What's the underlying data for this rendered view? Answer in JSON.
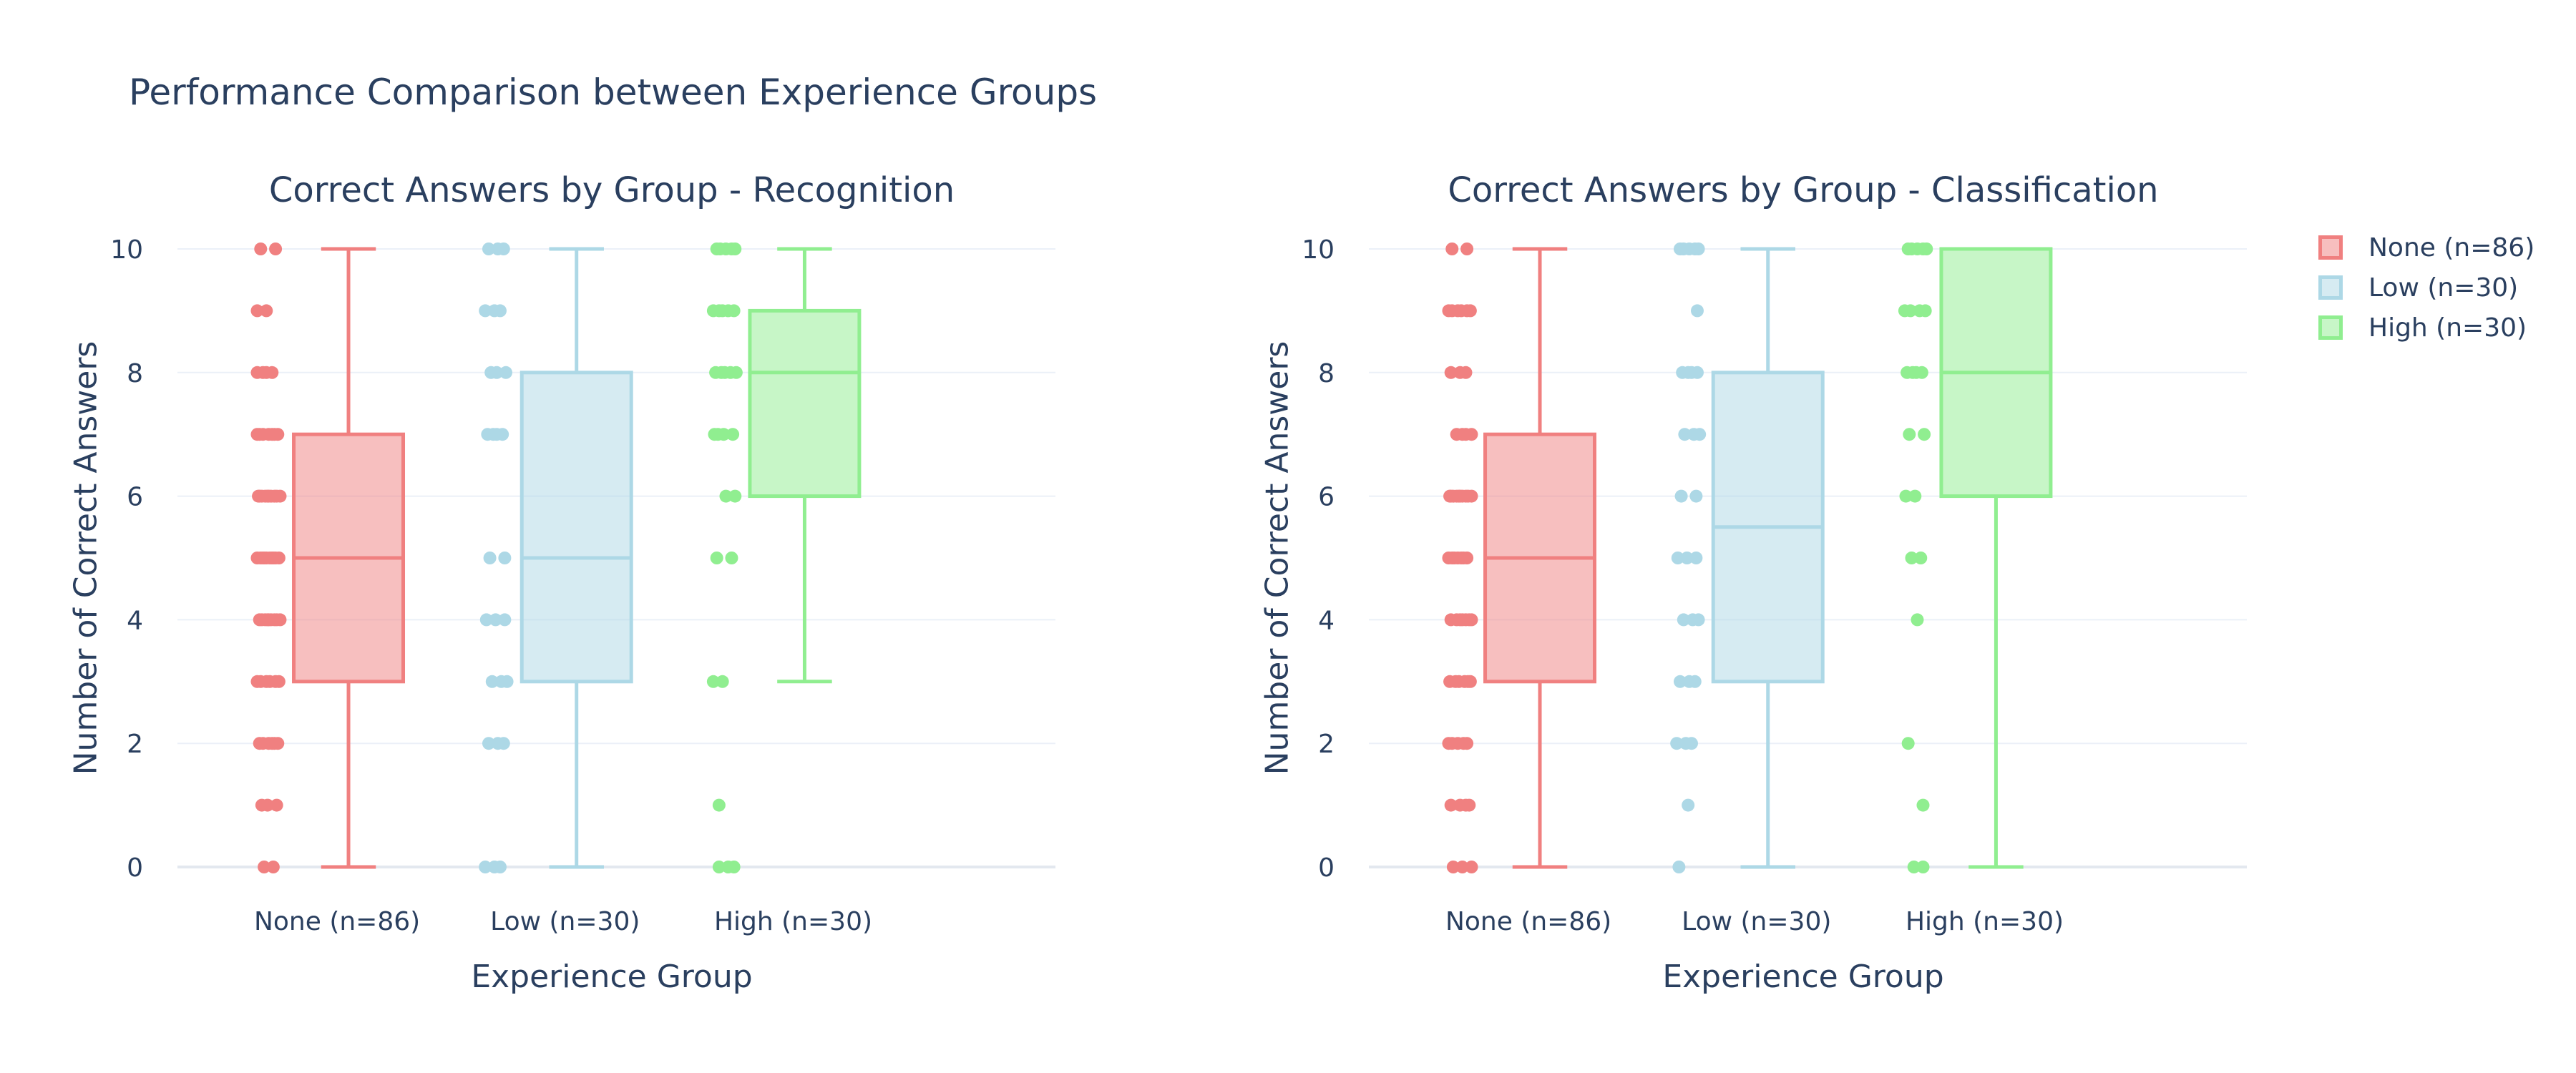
{
  "title": "Performance Comparison between Experience Groups",
  "colors": {
    "None (n=86)": "#f08080",
    "Low (n=30)": "#add8e6",
    "High (n=30)": "#90ee90"
  },
  "legend": [
    {
      "name": "None (n=86)",
      "color": "#f08080"
    },
    {
      "name": "Low (n=30)",
      "color": "#add8e6"
    },
    {
      "name": "High (n=30)",
      "color": "#90ee90"
    }
  ],
  "chart_data": [
    {
      "type": "box",
      "title": "Correct Answers by Group - Recognition",
      "xlabel": "Experience Group",
      "ylabel": "Number of Correct Answers",
      "ylim": [
        0,
        10
      ],
      "yticks": [
        0,
        2,
        4,
        6,
        8,
        10
      ],
      "grid": true,
      "categories": [
        "None (n=86)",
        "Low (n=30)",
        "High (n=30)"
      ],
      "boxes": [
        {
          "name": "None (n=86)",
          "min": 0,
          "q1": 3,
          "median": 5,
          "q3": 7,
          "max": 10,
          "points": [
            10,
            10,
            9,
            9,
            8,
            8,
            8,
            8,
            7,
            7,
            7,
            7,
            7,
            7,
            7,
            6,
            6,
            6,
            6,
            6,
            6,
            6,
            6,
            6,
            6,
            5,
            5,
            5,
            5,
            5,
            5,
            5,
            5,
            5,
            5,
            4,
            4,
            4,
            4,
            4,
            4,
            4,
            4,
            4,
            3,
            3,
            3,
            3,
            3,
            3,
            2,
            2,
            2,
            2,
            2,
            2,
            1,
            1,
            1,
            0,
            0
          ]
        },
        {
          "name": "Low (n=30)",
          "min": 0,
          "q1": 3,
          "median": 5,
          "q3": 8,
          "max": 10,
          "points": [
            10,
            10,
            10,
            9,
            9,
            9,
            8,
            8,
            8,
            7,
            7,
            7,
            7,
            5,
            5,
            4,
            4,
            4,
            3,
            3,
            3,
            2,
            2,
            2,
            0,
            0,
            0
          ]
        },
        {
          "name": "High (n=30)",
          "min": 3,
          "q1": 6,
          "median": 8,
          "q3": 9,
          "max": 10,
          "points": [
            10,
            10,
            10,
            10,
            10,
            9,
            9,
            9,
            9,
            9,
            8,
            8,
            8,
            8,
            8,
            7,
            7,
            7,
            7,
            6,
            6,
            5,
            5,
            3,
            3,
            1,
            0,
            0,
            0
          ]
        }
      ]
    },
    {
      "type": "box",
      "title": "Correct Answers by Group - Classification",
      "xlabel": "Experience Group",
      "ylabel": "Number of Correct Answers",
      "ylim": [
        0,
        10
      ],
      "yticks": [
        0,
        2,
        4,
        6,
        8,
        10
      ],
      "grid": true,
      "categories": [
        "None (n=86)",
        "Low (n=30)",
        "High (n=30)"
      ],
      "boxes": [
        {
          "name": "None (n=86)",
          "min": 0,
          "q1": 3,
          "median": 5,
          "q3": 7,
          "max": 10,
          "points": [
            10,
            10,
            9,
            9,
            9,
            9,
            9,
            9,
            8,
            8,
            8,
            7,
            7,
            7,
            7,
            6,
            6,
            6,
            6,
            6,
            6,
            6,
            6,
            6,
            6,
            5,
            5,
            5,
            5,
            5,
            5,
            5,
            4,
            4,
            4,
            4,
            4,
            4,
            4,
            3,
            3,
            3,
            3,
            3,
            3,
            2,
            2,
            2,
            2,
            2,
            1,
            1,
            1,
            1,
            0,
            0,
            0
          ]
        },
        {
          "name": "Low (n=30)",
          "min": 0,
          "q1": 3,
          "median": 5.5,
          "q3": 8,
          "max": 10,
          "points": [
            10,
            10,
            10,
            10,
            10,
            9,
            8,
            8,
            8,
            8,
            7,
            7,
            7,
            6,
            6,
            5,
            5,
            5,
            4,
            4,
            4,
            3,
            3,
            3,
            2,
            2,
            2,
            1,
            0
          ]
        },
        {
          "name": "High (n=30)",
          "min": 0,
          "q1": 6,
          "median": 8,
          "q3": 10,
          "max": 10,
          "points": [
            10,
            10,
            10,
            10,
            10,
            9,
            9,
            9,
            9,
            8,
            8,
            8,
            8,
            7,
            7,
            6,
            6,
            5,
            5,
            4,
            2,
            1,
            0,
            0
          ]
        }
      ]
    }
  ]
}
